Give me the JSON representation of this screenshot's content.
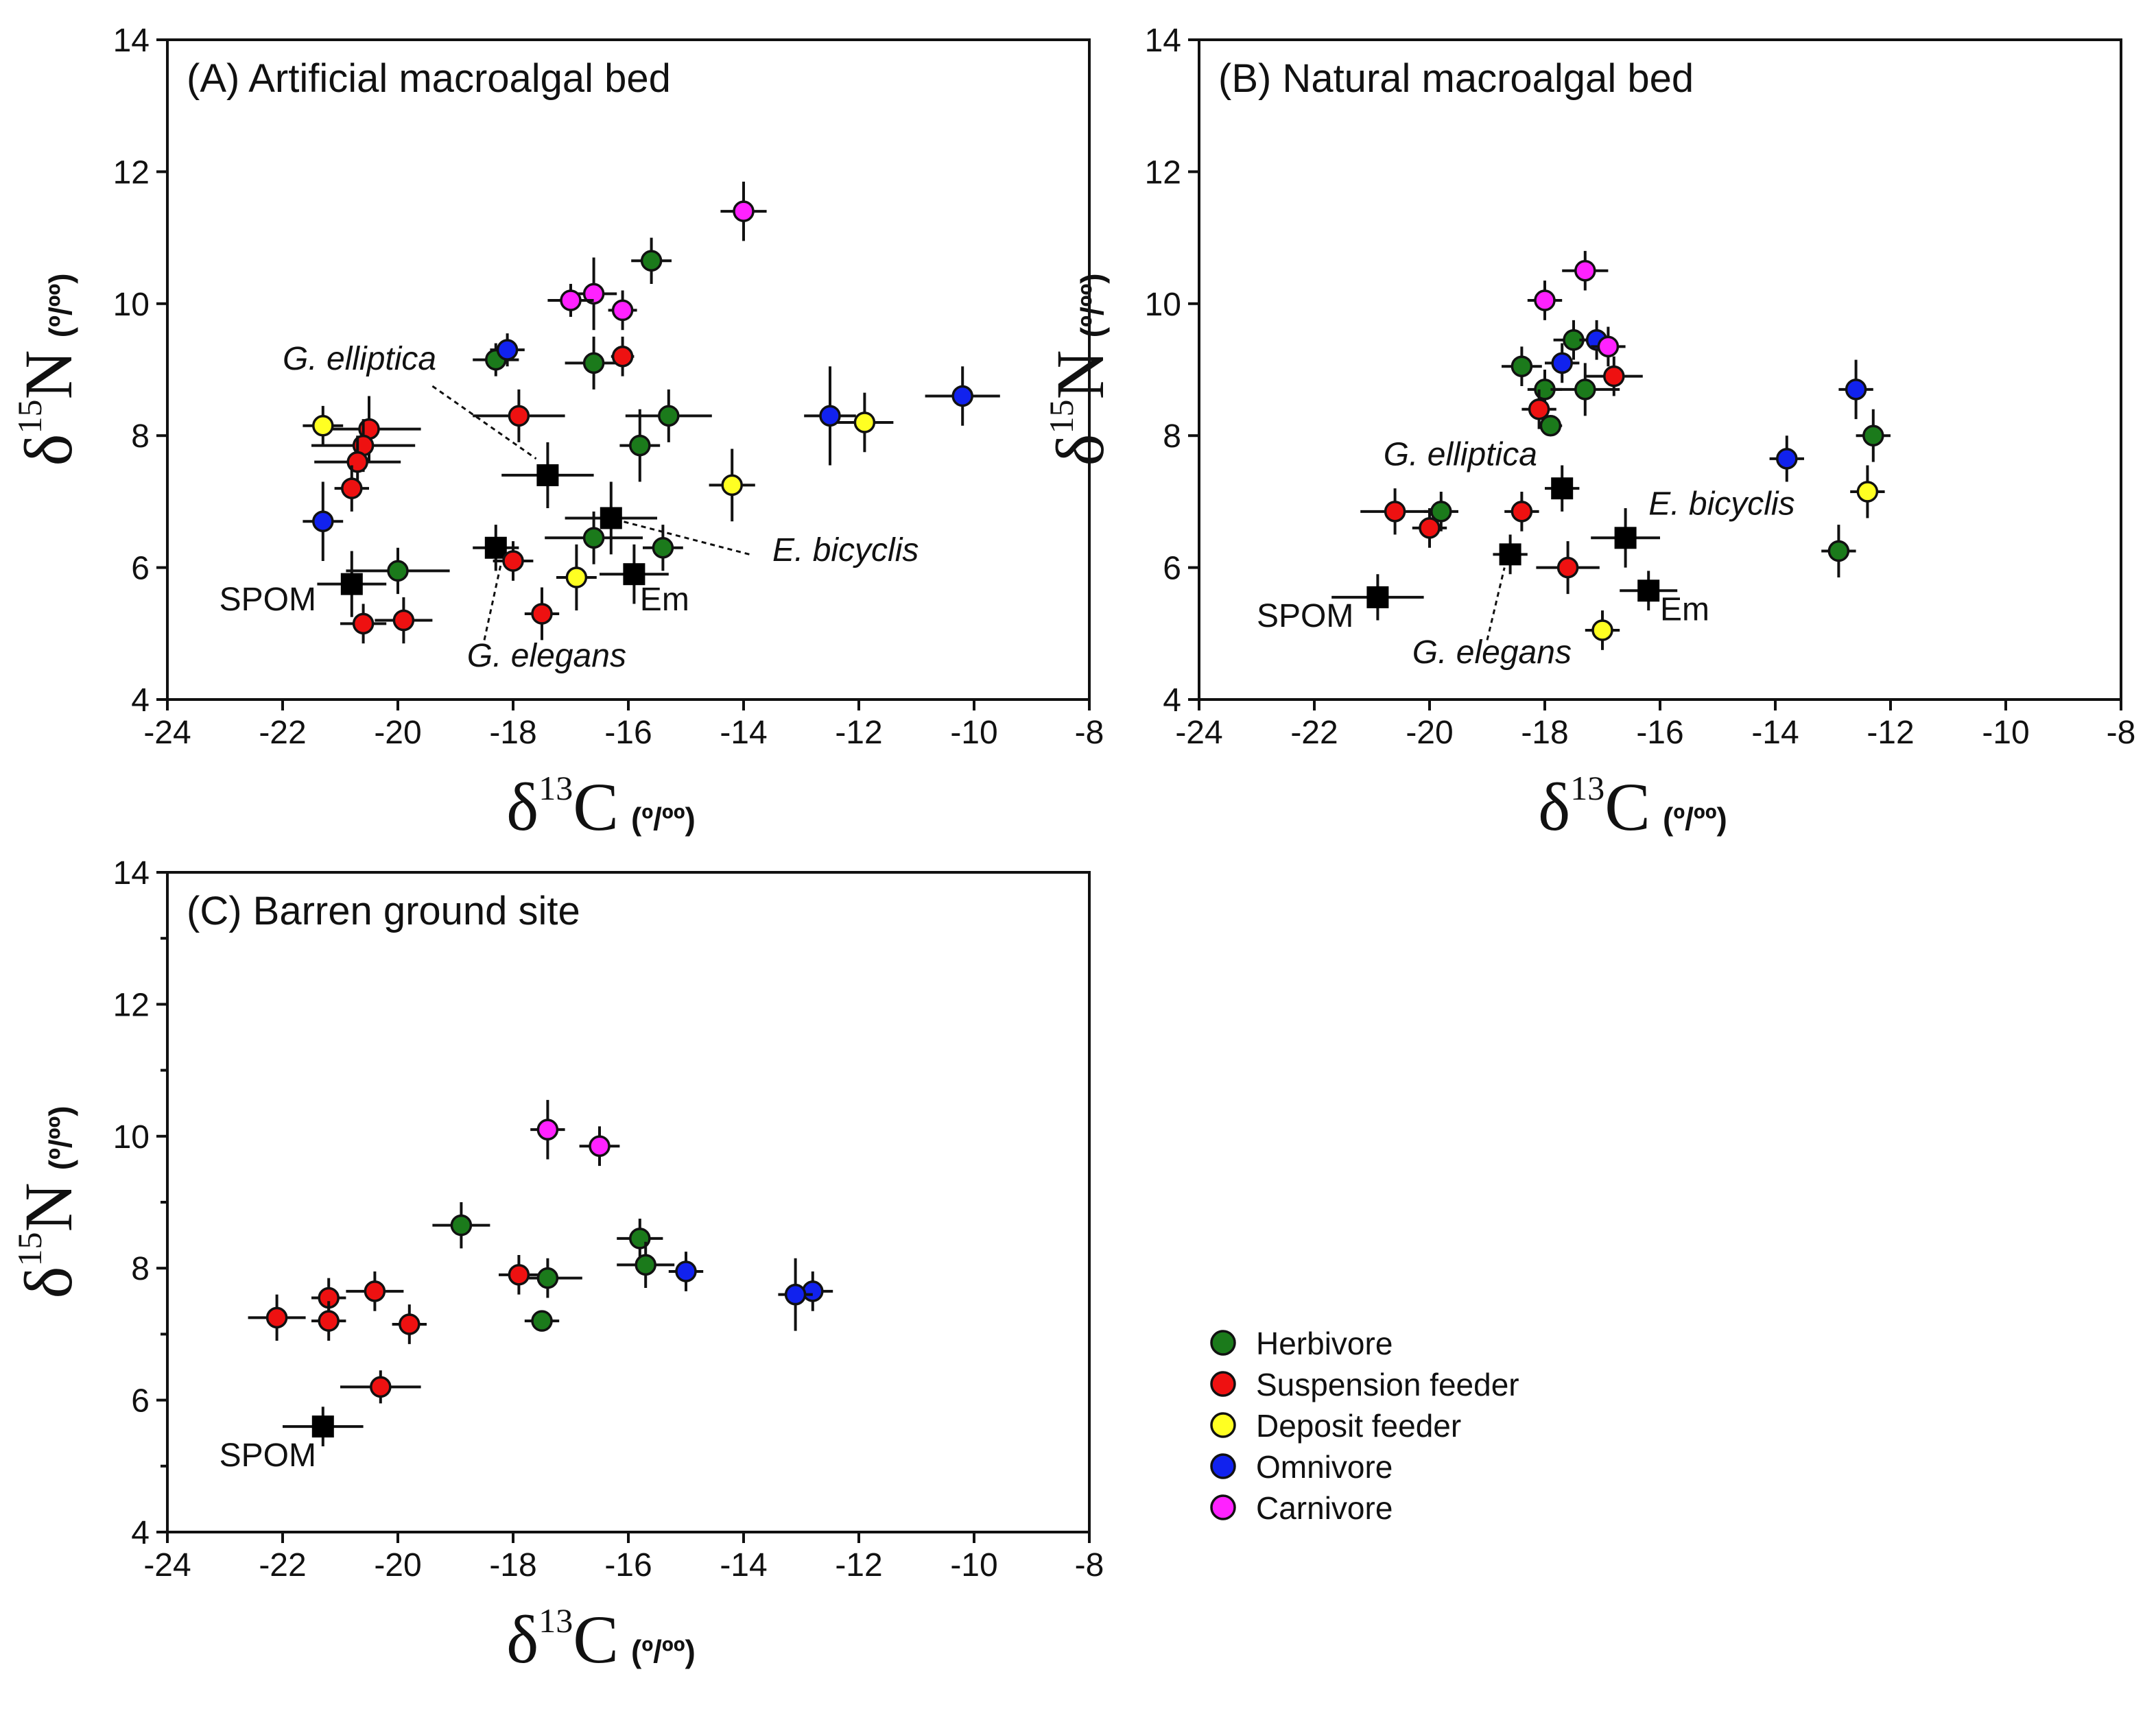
{
  "categories": {
    "herbivore": {
      "label": "Herbivore",
      "color": "#1b7a1b"
    },
    "suspension": {
      "label": "Suspension feeder",
      "color": "#ee1111"
    },
    "deposit": {
      "label": "Deposit feeder",
      "color": "#ffff22"
    },
    "omnivore": {
      "label": "Omnivore",
      "color": "#1122ee"
    },
    "carnivore": {
      "label": "Carnivore",
      "color": "#ff22ff"
    }
  },
  "legend_order": [
    "herbivore",
    "suspension",
    "deposit",
    "omnivore",
    "carnivore"
  ],
  "chart_data": [
    {
      "type": "scatter",
      "panel": "A",
      "title": "(A) Artificial macroalgal bed",
      "xlabel": {
        "main": "δ",
        "sup": "13",
        "element": "C",
        "unit": "(º/ºº)"
      },
      "ylabel": {
        "main": "δ",
        "sup": "15",
        "element": "N",
        "unit": "(º/ºº)"
      },
      "xlim": [
        -24,
        -8
      ],
      "ylim": [
        4,
        14
      ],
      "xticks": [
        -24,
        -22,
        -20,
        -18,
        -16,
        -14,
        -12,
        -10,
        -8
      ],
      "yticks": [
        4,
        6,
        8,
        10,
        12,
        14
      ],
      "points": [
        {
          "cat": "herbivore",
          "x": -15.6,
          "y": 10.65,
          "xerr": 0.35,
          "yerr": 0.35
        },
        {
          "cat": "herbivore",
          "x": -18.3,
          "y": 9.15,
          "xerr": 0.4,
          "yerr": 0.25
        },
        {
          "cat": "herbivore",
          "x": -16.6,
          "y": 9.1,
          "xerr": 0.5,
          "yerr": 0.4
        },
        {
          "cat": "herbivore",
          "x": -15.3,
          "y": 8.3,
          "xerr": 0.75,
          "yerr": 0.4
        },
        {
          "cat": "herbivore",
          "x": -15.8,
          "y": 7.85,
          "xerr": 0.35,
          "yerr": 0.55
        },
        {
          "cat": "herbivore",
          "x": -16.6,
          "y": 6.45,
          "xerr": 0.85,
          "yerr": 0.4
        },
        {
          "cat": "herbivore",
          "x": -15.4,
          "y": 6.3,
          "xerr": 0.35,
          "yerr": 0.35
        },
        {
          "cat": "herbivore",
          "x": -20.0,
          "y": 5.95,
          "xerr": 0.9,
          "yerr": 0.35
        },
        {
          "cat": "suspension",
          "x": -16.1,
          "y": 9.2,
          "xerr": 0.2,
          "yerr": 0.3
        },
        {
          "cat": "suspension",
          "x": -17.9,
          "y": 8.3,
          "xerr": 0.8,
          "yerr": 0.4
        },
        {
          "cat": "suspension",
          "x": -20.5,
          "y": 8.1,
          "xerr": 0.9,
          "yerr": 0.5
        },
        {
          "cat": "suspension",
          "x": -20.6,
          "y": 7.85,
          "xerr": 0.9,
          "yerr": 0.4
        },
        {
          "cat": "suspension",
          "x": -20.7,
          "y": 7.6,
          "xerr": 0.75,
          "yerr": 0.4
        },
        {
          "cat": "suspension",
          "x": -20.8,
          "y": 7.2,
          "xerr": 0.3,
          "yerr": 0.35
        },
        {
          "cat": "suspension",
          "x": -18.0,
          "y": 6.1,
          "xerr": 0.35,
          "yerr": 0.3
        },
        {
          "cat": "suspension",
          "x": -17.5,
          "y": 5.3,
          "xerr": 0.3,
          "yerr": 0.4
        },
        {
          "cat": "suspension",
          "x": -20.6,
          "y": 5.15,
          "xerr": 0.4,
          "yerr": 0.3
        },
        {
          "cat": "suspension",
          "x": -19.9,
          "y": 5.2,
          "xerr": 0.5,
          "yerr": 0.35
        },
        {
          "cat": "deposit",
          "x": -21.3,
          "y": 8.15,
          "xerr": 0.35,
          "yerr": 0.3
        },
        {
          "cat": "deposit",
          "x": -11.9,
          "y": 8.2,
          "xerr": 0.5,
          "yerr": 0.45
        },
        {
          "cat": "deposit",
          "x": -14.2,
          "y": 7.25,
          "xerr": 0.4,
          "yerr": 0.55
        },
        {
          "cat": "deposit",
          "x": -16.9,
          "y": 5.85,
          "xerr": 0.35,
          "yerr": 0.5
        },
        {
          "cat": "omnivore",
          "x": -18.1,
          "y": 9.3,
          "xerr": 0.3,
          "yerr": 0.25
        },
        {
          "cat": "omnivore",
          "x": -12.5,
          "y": 8.3,
          "xerr": 0.45,
          "yerr": 0.75
        },
        {
          "cat": "omnivore",
          "x": -10.2,
          "y": 8.6,
          "xerr": 0.65,
          "yerr": 0.45
        },
        {
          "cat": "omnivore",
          "x": -21.3,
          "y": 6.7,
          "xerr": 0.35,
          "yerr": 0.6
        },
        {
          "cat": "carnivore",
          "x": -14.0,
          "y": 11.4,
          "xerr": 0.4,
          "yerr": 0.45
        },
        {
          "cat": "carnivore",
          "x": -16.6,
          "y": 10.15,
          "xerr": 0.4,
          "yerr": 0.55
        },
        {
          "cat": "carnivore",
          "x": -17.0,
          "y": 10.05,
          "xerr": 0.4,
          "yerr": 0.25
        },
        {
          "cat": "carnivore",
          "x": -16.1,
          "y": 9.9,
          "xerr": 0.25,
          "yerr": 0.3
        }
      ],
      "squares": [
        {
          "x": -17.4,
          "y": 7.4,
          "xerr": 0.8,
          "yerr": 0.5
        },
        {
          "x": -16.3,
          "y": 6.75,
          "xerr": 0.8,
          "yerr": 0.55
        },
        {
          "x": -18.3,
          "y": 6.3,
          "xerr": 0.4,
          "yerr": 0.35
        },
        {
          "x": -15.9,
          "y": 5.9,
          "xerr": 0.6,
          "yerr": 0.45
        },
        {
          "x": -20.8,
          "y": 5.75,
          "xerr": 0.6,
          "yerr": 0.5
        }
      ],
      "annotations": [
        {
          "text": "G. elliptica",
          "italic": true,
          "x": -22.0,
          "y": 9.0,
          "leader": [
            [
              -19.4,
              8.75
            ],
            [
              -17.6,
              7.65
            ]
          ]
        },
        {
          "text": "E. bicyclis",
          "italic": true,
          "x": -13.5,
          "y": 6.1,
          "leader": [
            [
              -13.9,
              6.2
            ],
            [
              -16.1,
              6.7
            ]
          ]
        },
        {
          "text": "G. elegans",
          "italic": true,
          "x": -18.8,
          "y": 4.5,
          "leader": [
            [
              -18.5,
              4.9
            ],
            [
              -18.2,
              6.1
            ]
          ]
        },
        {
          "text": "SPOM",
          "italic": false,
          "x": -23.1,
          "y": 5.35,
          "leader": null
        },
        {
          "text": "Em",
          "italic": false,
          "x": -15.8,
          "y": 5.35,
          "leader": null
        }
      ]
    },
    {
      "type": "scatter",
      "panel": "B",
      "title": "(B) Natural macroalgal bed",
      "xlabel": {
        "main": "δ",
        "sup": "13",
        "element": "C",
        "unit": "(º/ºº)"
      },
      "ylabel": {
        "main": "δ",
        "sup": "15",
        "element": "N",
        "unit": "(º/ºº)"
      },
      "xlim": [
        -24,
        -8
      ],
      "ylim": [
        4,
        14
      ],
      "xticks": [
        -24,
        -22,
        -20,
        -18,
        -16,
        -14,
        -12,
        -10,
        -8
      ],
      "yticks": [
        4,
        6,
        8,
        10,
        12,
        14
      ],
      "points": [
        {
          "cat": "herbivore",
          "x": -17.5,
          "y": 9.45,
          "xerr": 0.35,
          "yerr": 0.3
        },
        {
          "cat": "herbivore",
          "x": -18.4,
          "y": 9.05,
          "xerr": 0.35,
          "yerr": 0.3
        },
        {
          "cat": "herbivore",
          "x": -18.0,
          "y": 8.7,
          "xerr": 0.3,
          "yerr": 0.3
        },
        {
          "cat": "herbivore",
          "x": -17.3,
          "y": 8.7,
          "xerr": 0.6,
          "yerr": 0.4
        },
        {
          "cat": "herbivore",
          "x": -17.9,
          "y": 8.15,
          "xerr": 0.2,
          "yerr": 0.15
        },
        {
          "cat": "herbivore",
          "x": -12.3,
          "y": 8.0,
          "xerr": 0.3,
          "yerr": 0.4
        },
        {
          "cat": "herbivore",
          "x": -19.8,
          "y": 6.85,
          "xerr": 0.3,
          "yerr": 0.3
        },
        {
          "cat": "herbivore",
          "x": -12.9,
          "y": 6.25,
          "xerr": 0.3,
          "yerr": 0.4
        },
        {
          "cat": "suspension",
          "x": -16.8,
          "y": 8.9,
          "xerr": 0.5,
          "yerr": 0.3
        },
        {
          "cat": "suspension",
          "x": -18.1,
          "y": 8.4,
          "xerr": 0.3,
          "yerr": 0.3
        },
        {
          "cat": "suspension",
          "x": -20.6,
          "y": 6.85,
          "xerr": 0.6,
          "yerr": 0.35
        },
        {
          "cat": "suspension",
          "x": -20.0,
          "y": 6.6,
          "xerr": 0.3,
          "yerr": 0.3
        },
        {
          "cat": "suspension",
          "x": -18.4,
          "y": 6.85,
          "xerr": 0.3,
          "yerr": 0.3
        },
        {
          "cat": "suspension",
          "x": -17.6,
          "y": 6.0,
          "xerr": 0.55,
          "yerr": 0.4
        },
        {
          "cat": "deposit",
          "x": -12.4,
          "y": 7.15,
          "xerr": 0.3,
          "yerr": 0.4
        },
        {
          "cat": "deposit",
          "x": -17.0,
          "y": 5.05,
          "xerr": 0.3,
          "yerr": 0.3
        },
        {
          "cat": "omnivore",
          "x": -17.1,
          "y": 9.45,
          "xerr": 0.3,
          "yerr": 0.3
        },
        {
          "cat": "omnivore",
          "x": -17.7,
          "y": 9.1,
          "xerr": 0.3,
          "yerr": 0.3
        },
        {
          "cat": "omnivore",
          "x": -12.6,
          "y": 8.7,
          "xerr": 0.3,
          "yerr": 0.45
        },
        {
          "cat": "omnivore",
          "x": -13.8,
          "y": 7.65,
          "xerr": 0.3,
          "yerr": 0.35
        },
        {
          "cat": "carnivore",
          "x": -17.3,
          "y": 10.5,
          "xerr": 0.4,
          "yerr": 0.3
        },
        {
          "cat": "carnivore",
          "x": -18.0,
          "y": 10.05,
          "xerr": 0.3,
          "yerr": 0.3
        },
        {
          "cat": "carnivore",
          "x": -16.9,
          "y": 9.35,
          "xerr": 0.3,
          "yerr": 0.3
        }
      ],
      "squares": [
        {
          "x": -17.7,
          "y": 7.2,
          "xerr": 0.3,
          "yerr": 0.35
        },
        {
          "x": -16.6,
          "y": 6.45,
          "xerr": 0.6,
          "yerr": 0.45
        },
        {
          "x": -18.6,
          "y": 6.2,
          "xerr": 0.3,
          "yerr": 0.3
        },
        {
          "x": -16.2,
          "y": 5.65,
          "xerr": 0.5,
          "yerr": 0.3
        },
        {
          "x": -20.9,
          "y": 5.55,
          "xerr": 0.8,
          "yerr": 0.35
        }
      ],
      "annotations": [
        {
          "text": "G. elliptica",
          "italic": true,
          "x": -20.8,
          "y": 7.55,
          "leader": null
        },
        {
          "text": "E. bicyclis",
          "italic": true,
          "x": -16.2,
          "y": 6.8,
          "leader": null
        },
        {
          "text": "G. elegans",
          "italic": true,
          "x": -20.3,
          "y": 4.55,
          "leader": [
            [
              -19.0,
              4.9
            ],
            [
              -18.7,
              6.0
            ]
          ]
        },
        {
          "text": "SPOM",
          "italic": false,
          "x": -23.0,
          "y": 5.1,
          "leader": null
        },
        {
          "text": "Em",
          "italic": false,
          "x": -16.0,
          "y": 5.2,
          "leader": null
        }
      ]
    },
    {
      "type": "scatter",
      "panel": "C",
      "title": "(C) Barren ground site",
      "xlabel": {
        "main": "δ",
        "sup": "13",
        "element": "C",
        "unit": "(º/ºº)"
      },
      "ylabel": {
        "main": "δ",
        "sup": "15",
        "element": "N",
        "unit": "(º/ºº)"
      },
      "xlim": [
        -24,
        -8
      ],
      "ylim": [
        4,
        14
      ],
      "xticks": [
        -24,
        -22,
        -20,
        -18,
        -16,
        -14,
        -12,
        -10,
        -8
      ],
      "yticks": [
        4,
        6,
        8,
        10,
        12,
        14
      ],
      "ytick_labels_shown": [
        4,
        6,
        8,
        10,
        12,
        14
      ],
      "points": [
        {
          "cat": "herbivore",
          "x": -18.9,
          "y": 8.65,
          "xerr": 0.5,
          "yerr": 0.35
        },
        {
          "cat": "herbivore",
          "x": -15.8,
          "y": 8.45,
          "xerr": 0.4,
          "yerr": 0.3
        },
        {
          "cat": "herbivore",
          "x": -15.7,
          "y": 8.05,
          "xerr": 0.5,
          "yerr": 0.35
        },
        {
          "cat": "herbivore",
          "x": -17.4,
          "y": 7.85,
          "xerr": 0.6,
          "yerr": 0.3
        },
        {
          "cat": "herbivore",
          "x": -17.5,
          "y": 7.2,
          "xerr": 0.3,
          "yerr": 0.1
        },
        {
          "cat": "suspension",
          "x": -17.9,
          "y": 7.9,
          "xerr": 0.35,
          "yerr": 0.3
        },
        {
          "cat": "suspension",
          "x": -20.4,
          "y": 7.65,
          "xerr": 0.5,
          "yerr": 0.3
        },
        {
          "cat": "suspension",
          "x": -21.2,
          "y": 7.55,
          "xerr": 0.3,
          "yerr": 0.3
        },
        {
          "cat": "suspension",
          "x": -22.1,
          "y": 7.25,
          "xerr": 0.5,
          "yerr": 0.35
        },
        {
          "cat": "suspension",
          "x": -21.2,
          "y": 7.2,
          "xerr": 0.3,
          "yerr": 0.3
        },
        {
          "cat": "suspension",
          "x": -19.8,
          "y": 7.15,
          "xerr": 0.3,
          "yerr": 0.3
        },
        {
          "cat": "suspension",
          "x": -20.3,
          "y": 6.2,
          "xerr": 0.7,
          "yerr": 0.25
        },
        {
          "cat": "omnivore",
          "x": -15.0,
          "y": 7.95,
          "xerr": 0.3,
          "yerr": 0.3
        },
        {
          "cat": "omnivore",
          "x": -12.8,
          "y": 7.65,
          "xerr": 0.35,
          "yerr": 0.3
        },
        {
          "cat": "omnivore",
          "x": -13.1,
          "y": 7.6,
          "xerr": 0.3,
          "yerr": 0.55
        },
        {
          "cat": "carnivore",
          "x": -17.4,
          "y": 10.1,
          "xerr": 0.3,
          "yerr": 0.45
        },
        {
          "cat": "carnivore",
          "x": -16.5,
          "y": 9.85,
          "xerr": 0.35,
          "yerr": 0.3
        }
      ],
      "squares": [
        {
          "x": -21.3,
          "y": 5.6,
          "xerr": 0.7,
          "yerr": 0.3
        }
      ],
      "annotations": [
        {
          "text": "SPOM",
          "italic": false,
          "x": -23.1,
          "y": 5.0,
          "leader": null
        }
      ]
    }
  ]
}
